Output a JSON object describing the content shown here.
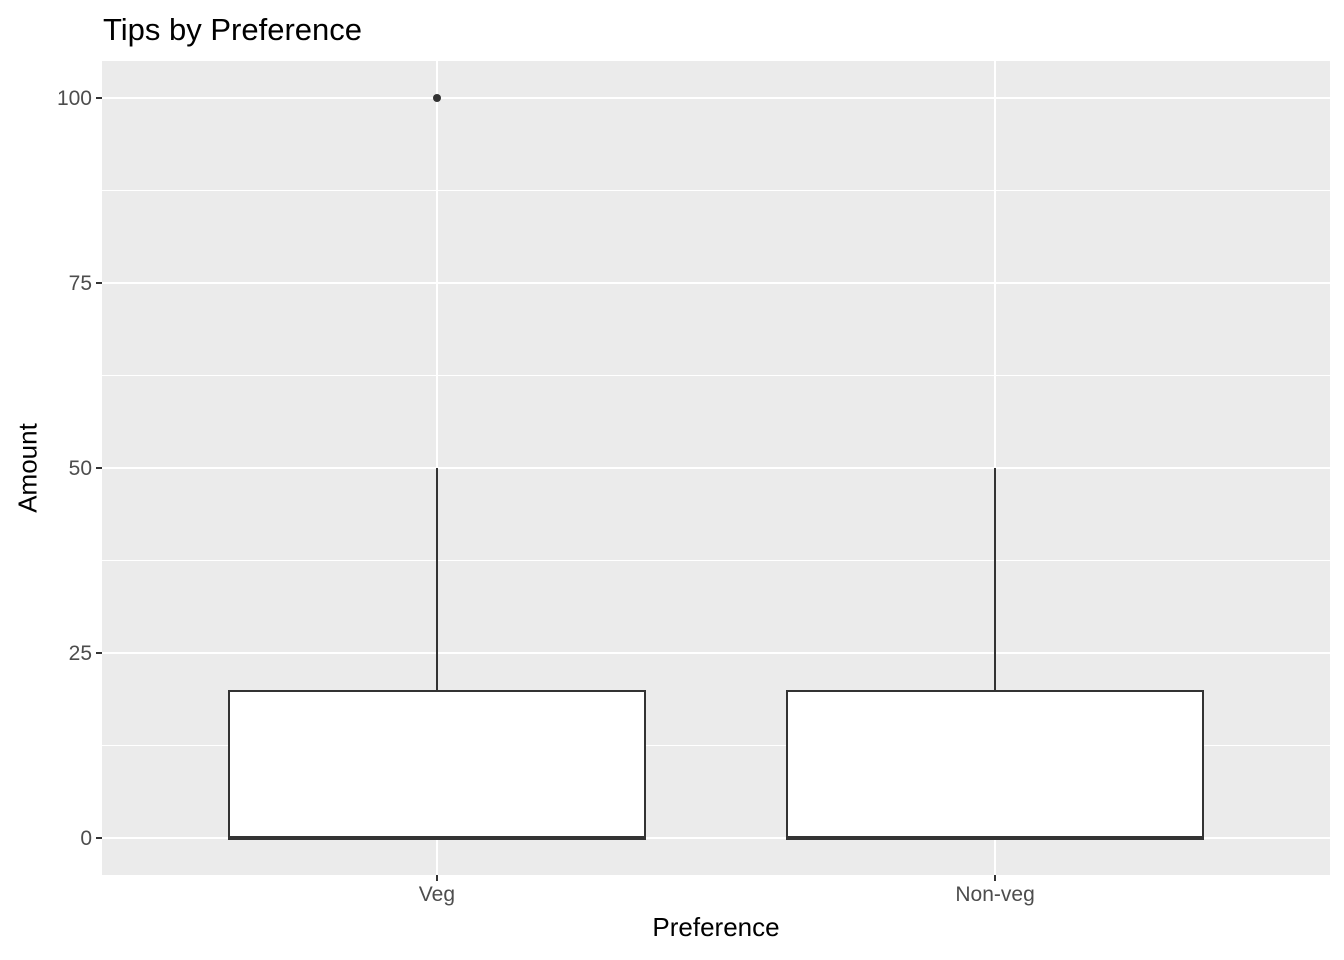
{
  "chart_data": {
    "type": "boxplot",
    "title": "Tips by Preference",
    "xlabel": "Preference",
    "ylabel": "Amount",
    "categories": [
      "Veg",
      "Non-veg"
    ],
    "series": [
      {
        "category": "Veg",
        "whisker_low": 0,
        "q1": 0,
        "median": 0,
        "q3": 20,
        "whisker_high": 50,
        "outliers": [
          100
        ]
      },
      {
        "category": "Non-veg",
        "whisker_low": 0,
        "q1": 0,
        "median": 0,
        "q3": 20,
        "whisker_high": 50,
        "outliers": []
      }
    ],
    "y_ticks": [
      0,
      25,
      50,
      75,
      100
    ],
    "y_minor_ticks": [
      12.5,
      37.5,
      62.5,
      87.5
    ],
    "ylim": [
      -5,
      105
    ],
    "grid": "on",
    "legend": "none",
    "colors": {
      "panel_background": "#EBEBEB",
      "gridline": "#FFFFFF",
      "box_border": "#333333",
      "box_fill": "#FFFFFF",
      "median": "#333333",
      "outlier": "#333333",
      "tick_label": "#4D4D4D",
      "axis_title": "#000000",
      "title": "#000000"
    }
  }
}
